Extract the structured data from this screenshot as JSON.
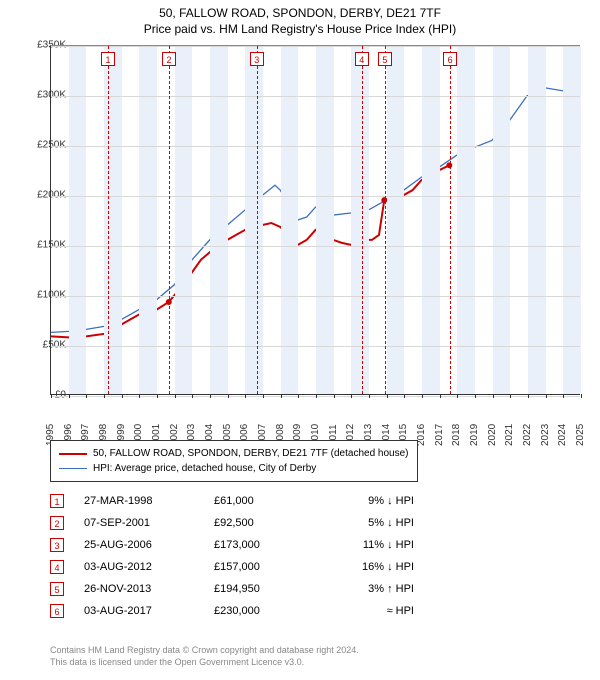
{
  "title": {
    "main": "50, FALLOW ROAD, SPONDON, DERBY, DE21 7TF",
    "sub": "Price paid vs. HM Land Registry's House Price Index (HPI)"
  },
  "chart": {
    "type": "line",
    "xlim": [
      1995,
      2025
    ],
    "ylim": [
      0,
      350000
    ],
    "ytick_step": 50000,
    "yticks": [
      "£0",
      "£50K",
      "£100K",
      "£150K",
      "£200K",
      "£250K",
      "£300K",
      "£350K"
    ],
    "xticks": [
      1995,
      1996,
      1997,
      1998,
      1999,
      2000,
      2001,
      2002,
      2003,
      2004,
      2005,
      2006,
      2007,
      2008,
      2009,
      2010,
      2011,
      2012,
      2013,
      2014,
      2015,
      2016,
      2017,
      2018,
      2019,
      2020,
      2021,
      2022,
      2023,
      2024,
      2025
    ],
    "band_color": "#eaf0fa",
    "background_color": "#ffffff",
    "grid_color": "#d8d8d8",
    "series": {
      "red": {
        "label": "50, FALLOW ROAD, SPONDON, DERBY, DE21 7TF (detached house)",
        "color": "#cc0000",
        "width": 2,
        "points": [
          [
            1995.0,
            58000
          ],
          [
            1996.0,
            57000
          ],
          [
            1997.0,
            58000
          ],
          [
            1998.23,
            61000
          ],
          [
            1999.0,
            70000
          ],
          [
            2000.0,
            80000
          ],
          [
            2000.8,
            90000
          ],
          [
            2001.0,
            85000
          ],
          [
            2001.68,
            92500
          ],
          [
            2002.5,
            110000
          ],
          [
            2003.5,
            135000
          ],
          [
            2004.5,
            150000
          ],
          [
            2005.5,
            160000
          ],
          [
            2006.0,
            165000
          ],
          [
            2006.65,
            173000
          ],
          [
            2007.0,
            170000
          ],
          [
            2007.5,
            172000
          ],
          [
            2008.0,
            168000
          ],
          [
            2008.5,
            160000
          ],
          [
            2009.0,
            150000
          ],
          [
            2009.5,
            155000
          ],
          [
            2010.0,
            165000
          ],
          [
            2010.5,
            160000
          ],
          [
            2011.0,
            155000
          ],
          [
            2011.5,
            152000
          ],
          [
            2012.0,
            150000
          ],
          [
            2012.59,
            157000
          ],
          [
            2012.8,
            155000
          ],
          [
            2013.2,
            155000
          ],
          [
            2013.6,
            160000
          ],
          [
            2013.9,
            194950
          ],
          [
            2014.5,
            198000
          ],
          [
            2015.0,
            200000
          ],
          [
            2015.5,
            205000
          ],
          [
            2016.0,
            215000
          ],
          [
            2016.5,
            220000
          ],
          [
            2017.0,
            225000
          ],
          [
            2017.59,
            230000
          ]
        ]
      },
      "blue": {
        "label": "HPI: Average price, detached house, City of Derby",
        "color": "#3b6fc4",
        "width": 1.3,
        "points": [
          [
            1995.0,
            62000
          ],
          [
            1996.0,
            63000
          ],
          [
            1997.0,
            65000
          ],
          [
            1998.0,
            68000
          ],
          [
            1999.0,
            75000
          ],
          [
            2000.0,
            85000
          ],
          [
            2001.0,
            95000
          ],
          [
            2002.0,
            110000
          ],
          [
            2003.0,
            135000
          ],
          [
            2004.0,
            155000
          ],
          [
            2005.0,
            170000
          ],
          [
            2006.0,
            185000
          ],
          [
            2007.0,
            200000
          ],
          [
            2007.7,
            210000
          ],
          [
            2008.0,
            205000
          ],
          [
            2008.5,
            190000
          ],
          [
            2009.0,
            175000
          ],
          [
            2009.5,
            178000
          ],
          [
            2010.0,
            188000
          ],
          [
            2010.5,
            185000
          ],
          [
            2011.0,
            180000
          ],
          [
            2012.0,
            182000
          ],
          [
            2013.0,
            185000
          ],
          [
            2014.0,
            195000
          ],
          [
            2015.0,
            205000
          ],
          [
            2016.0,
            218000
          ],
          [
            2017.0,
            228000
          ],
          [
            2018.0,
            240000
          ],
          [
            2019.0,
            248000
          ],
          [
            2020.0,
            255000
          ],
          [
            2021.0,
            275000
          ],
          [
            2022.0,
            300000
          ],
          [
            2023.0,
            308000
          ],
          [
            2024.0,
            305000
          ],
          [
            2024.7,
            310000
          ]
        ]
      }
    },
    "markers": [
      {
        "n": "1",
        "year": 1998.23
      },
      {
        "n": "2",
        "year": 2001.68
      },
      {
        "n": "3",
        "year": 2006.65
      },
      {
        "n": "4",
        "year": 2012.59
      },
      {
        "n": "5",
        "year": 2013.9
      },
      {
        "n": "6",
        "year": 2017.59
      }
    ]
  },
  "legend": {
    "red": "50, FALLOW ROAD, SPONDON, DERBY, DE21 7TF (detached house)",
    "blue": "HPI: Average price, detached house, City of Derby"
  },
  "transactions": [
    {
      "n": "1",
      "date": "27-MAR-1998",
      "price": "£61,000",
      "hpi": "9% ↓ HPI"
    },
    {
      "n": "2",
      "date": "07-SEP-2001",
      "price": "£92,500",
      "hpi": "5% ↓ HPI"
    },
    {
      "n": "3",
      "date": "25-AUG-2006",
      "price": "£173,000",
      "hpi": "11% ↓ HPI"
    },
    {
      "n": "4",
      "date": "03-AUG-2012",
      "price": "£157,000",
      "hpi": "16% ↓ HPI"
    },
    {
      "n": "5",
      "date": "26-NOV-2013",
      "price": "£194,950",
      "hpi": "3% ↑ HPI"
    },
    {
      "n": "6",
      "date": "03-AUG-2017",
      "price": "£230,000",
      "hpi": "≈ HPI"
    }
  ],
  "footer": {
    "line1": "Contains HM Land Registry data © Crown copyright and database right 2024.",
    "line2": "This data is licensed under the Open Government Licence v3.0."
  }
}
